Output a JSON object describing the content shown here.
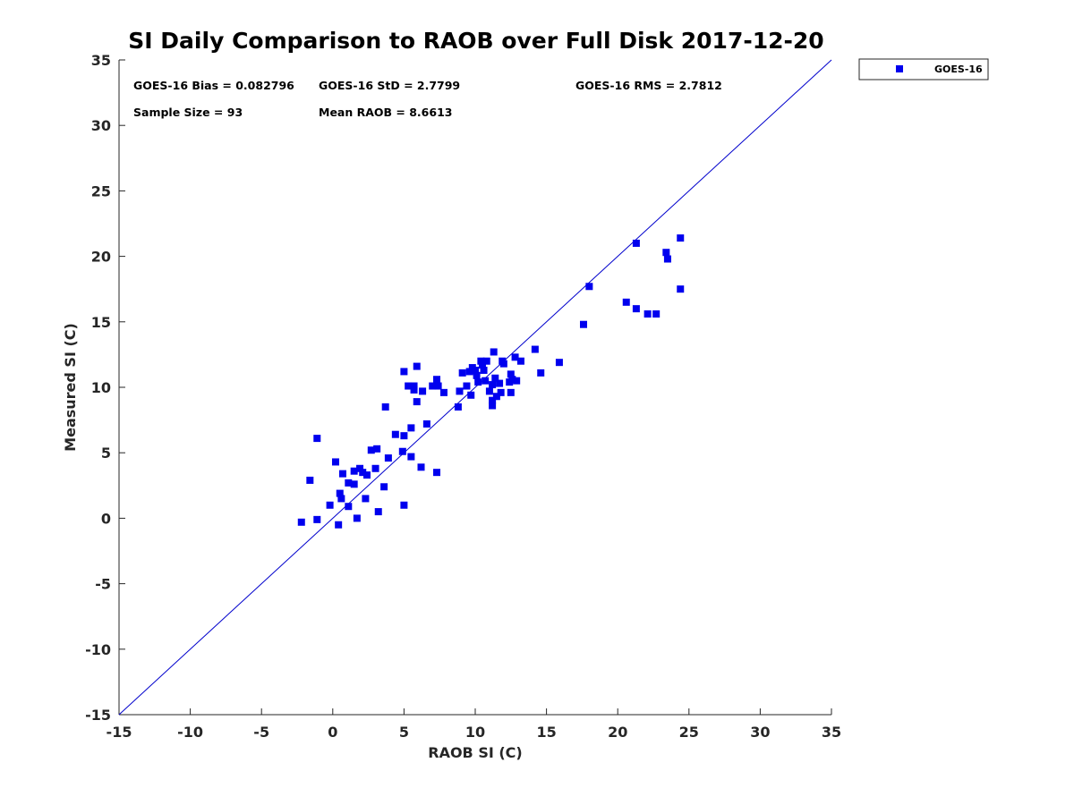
{
  "chart_data": {
    "type": "scatter",
    "title": "SI Daily Comparison to RAOB over Full Disk 2017-12-20",
    "xlabel": "RAOB SI (C)",
    "ylabel": "Measured SI (C)",
    "xlim": [
      -15,
      35
    ],
    "ylim": [
      -15,
      35
    ],
    "xticks": [
      "-15",
      "-10",
      "-5",
      "0",
      "5",
      "10",
      "15",
      "20",
      "25",
      "30",
      "35"
    ],
    "yticks": [
      "-15",
      "-10",
      "-5",
      "0",
      "5",
      "10",
      "15",
      "20",
      "25",
      "30",
      "35"
    ],
    "grid": false,
    "legend_position": "outside-top-right",
    "marker_color": "#0000ee",
    "line_color": "#0000cc",
    "reference_line": {
      "x": [
        -15,
        35
      ],
      "y": [
        -15,
        35
      ]
    },
    "annotations": {
      "bias": "GOES-16 Bias = 0.082796",
      "std": "GOES-16 StD = 2.7799",
      "rms": "GOES-16 RMS = 2.7812",
      "sample": "Sample Size = 93",
      "mean": "Mean RAOB = 8.6613"
    },
    "series": [
      {
        "name": "GOES-16",
        "points": [
          [
            -2.2,
            -0.3
          ],
          [
            -1.6,
            2.9
          ],
          [
            -1.1,
            -0.1
          ],
          [
            -1.1,
            6.1
          ],
          [
            -0.2,
            1.0
          ],
          [
            0.2,
            4.3
          ],
          [
            0.4,
            -0.5
          ],
          [
            0.5,
            1.9
          ],
          [
            0.6,
            1.5
          ],
          [
            0.7,
            3.4
          ],
          [
            1.1,
            0.9
          ],
          [
            1.1,
            2.7
          ],
          [
            1.5,
            3.6
          ],
          [
            1.5,
            2.6
          ],
          [
            1.7,
            0.0
          ],
          [
            1.9,
            3.8
          ],
          [
            2.1,
            3.5
          ],
          [
            2.3,
            1.5
          ],
          [
            2.4,
            3.3
          ],
          [
            2.7,
            5.2
          ],
          [
            3.0,
            3.8
          ],
          [
            3.1,
            5.3
          ],
          [
            3.2,
            0.5
          ],
          [
            3.6,
            2.4
          ],
          [
            3.7,
            8.5
          ],
          [
            3.9,
            4.6
          ],
          [
            4.4,
            6.4
          ],
          [
            4.9,
            5.1
          ],
          [
            5.0,
            6.3
          ],
          [
            5.0,
            11.2
          ],
          [
            5.0,
            1.0
          ],
          [
            5.3,
            10.1
          ],
          [
            5.5,
            6.9
          ],
          [
            5.5,
            4.7
          ],
          [
            5.7,
            9.8
          ],
          [
            5.7,
            10.1
          ],
          [
            5.9,
            11.6
          ],
          [
            5.9,
            8.9
          ],
          [
            6.2,
            3.9
          ],
          [
            6.3,
            9.7
          ],
          [
            6.6,
            7.2
          ],
          [
            7.0,
            10.1
          ],
          [
            7.3,
            10.6
          ],
          [
            7.3,
            3.5
          ],
          [
            7.4,
            10.1
          ],
          [
            7.8,
            9.6
          ],
          [
            8.8,
            8.5
          ],
          [
            8.9,
            9.7
          ],
          [
            9.1,
            11.1
          ],
          [
            9.4,
            10.1
          ],
          [
            9.6,
            11.2
          ],
          [
            9.7,
            9.4
          ],
          [
            9.8,
            11.5
          ],
          [
            10.0,
            11.3
          ],
          [
            10.1,
            10.9
          ],
          [
            10.2,
            10.4
          ],
          [
            10.4,
            12.0
          ],
          [
            10.5,
            11.7
          ],
          [
            10.6,
            11.3
          ],
          [
            10.7,
            10.5
          ],
          [
            10.8,
            12.0
          ],
          [
            11.0,
            9.7
          ],
          [
            11.2,
            10.2
          ],
          [
            11.2,
            9.0
          ],
          [
            11.2,
            8.6
          ],
          [
            11.3,
            12.7
          ],
          [
            11.4,
            10.7
          ],
          [
            11.5,
            9.3
          ],
          [
            11.7,
            10.3
          ],
          [
            11.8,
            9.6
          ],
          [
            11.9,
            12.0
          ],
          [
            12.0,
            11.8
          ],
          [
            12.4,
            10.4
          ],
          [
            12.5,
            11.0
          ],
          [
            12.5,
            9.6
          ],
          [
            12.6,
            10.6
          ],
          [
            12.8,
            12.3
          ],
          [
            12.9,
            10.5
          ],
          [
            13.2,
            12.0
          ],
          [
            14.2,
            12.9
          ],
          [
            14.6,
            11.1
          ],
          [
            15.9,
            11.9
          ],
          [
            17.6,
            14.8
          ],
          [
            18.0,
            17.7
          ],
          [
            20.6,
            16.5
          ],
          [
            21.3,
            21.0
          ],
          [
            21.3,
            16.0
          ],
          [
            22.1,
            15.6
          ],
          [
            22.7,
            15.6
          ],
          [
            23.4,
            20.3
          ],
          [
            23.5,
            19.8
          ],
          [
            24.4,
            21.4
          ],
          [
            24.4,
            17.5
          ]
        ]
      }
    ]
  }
}
